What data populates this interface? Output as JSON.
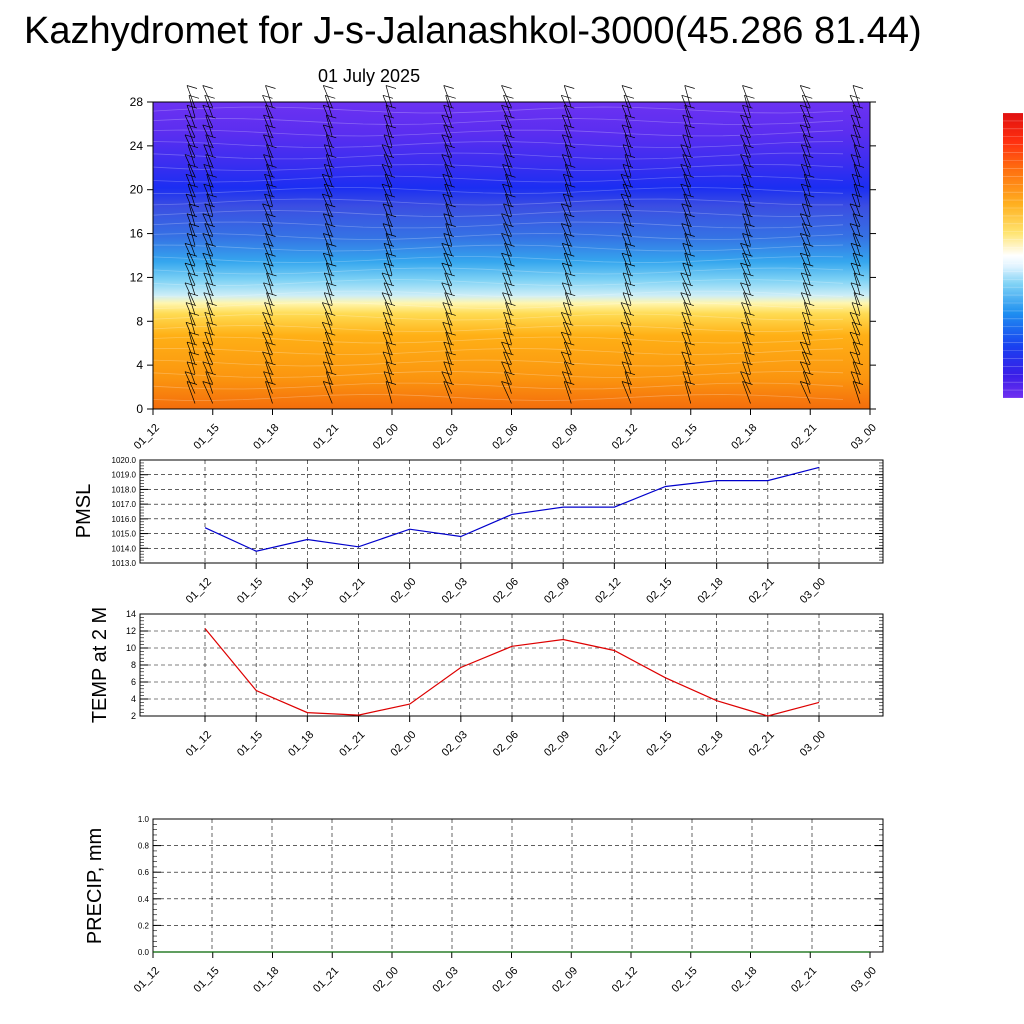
{
  "title": "Kazhydromet for J-s-Jalanashkol-3000(45.286 81.44)",
  "subtitle": "01 July 2025",
  "colors": {
    "pmsl_line": "#0000cc",
    "temp_line": "#dd0000",
    "precip_line": "#006400",
    "grid": "#000000"
  },
  "chart_data": [
    {
      "type": "heatmap",
      "id": "cross_section",
      "x": [
        "01_12",
        "01_15",
        "01_18",
        "01_21",
        "02_00",
        "02_03",
        "02_06",
        "02_09",
        "02_12",
        "02_15",
        "02_18",
        "02_21",
        "03_00"
      ],
      "ylim": [
        0,
        28
      ],
      "yticks": [
        "0",
        "4",
        "8",
        "12",
        "16",
        "20",
        "24",
        "28"
      ],
      "colorbar": "purple-blue-cyan-yellow-orange-red",
      "wind_barbs": true
    },
    {
      "type": "line",
      "id": "pmsl",
      "ylabel": "PMSL",
      "x": [
        "01_12",
        "01_15",
        "01_18",
        "01_21",
        "02_00",
        "02_03",
        "02_06",
        "02_09",
        "02_12",
        "02_15",
        "02_18",
        "02_21",
        "03_00"
      ],
      "ylim": [
        1013.0,
        1020.0
      ],
      "yticks": [
        "1013.0",
        "1014.0",
        "1015.0",
        "1016.0",
        "1017.0",
        "1018.0",
        "1019.0",
        "1020.0"
      ],
      "series": [
        {
          "values": [
            1015.4,
            1013.8,
            1014.6,
            1014.1,
            1015.3,
            1014.8,
            1016.3,
            1016.8,
            1016.8,
            1018.2,
            1018.6,
            1018.6,
            1019.5
          ]
        }
      ],
      "grid": true
    },
    {
      "type": "line",
      "id": "temp",
      "ylabel": "TEMP at 2 M",
      "x": [
        "01_12",
        "01_15",
        "01_18",
        "01_21",
        "02_00",
        "02_03",
        "02_06",
        "02_09",
        "02_12",
        "02_15",
        "02_18",
        "02_21",
        "03_00"
      ],
      "ylim": [
        2,
        14
      ],
      "yticks": [
        "2",
        "4",
        "6",
        "8",
        "10",
        "12",
        "14"
      ],
      "series": [
        {
          "values": [
            12.3,
            5.0,
            2.4,
            2.1,
            3.4,
            7.7,
            10.2,
            11.0,
            9.7,
            6.5,
            3.8,
            2.0,
            3.6
          ]
        }
      ],
      "grid": true
    },
    {
      "type": "line",
      "id": "precip",
      "ylabel": "PRECIP, mm",
      "x": [
        "01_12",
        "01_15",
        "01_18",
        "01_21",
        "02_00",
        "02_03",
        "02_06",
        "02_09",
        "02_12",
        "02_15",
        "02_18",
        "02_21",
        "03_00"
      ],
      "ylim": [
        0.0,
        1.0
      ],
      "yticks": [
        "0.0",
        "0.2",
        "0.4",
        "0.6",
        "0.8",
        "1.0"
      ],
      "series": [
        {
          "values": [
            0,
            0,
            0,
            0,
            0,
            0,
            0,
            0,
            0,
            0,
            0,
            0,
            0
          ]
        }
      ],
      "grid": true
    }
  ]
}
